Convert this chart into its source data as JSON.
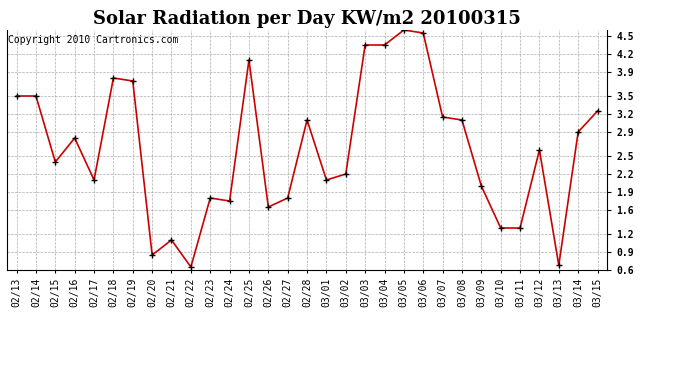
{
  "title": "Solar Radiation per Day KW/m2 20100315",
  "copyright": "Copyright 2010 Cartronics.com",
  "dates": [
    "02/13",
    "02/14",
    "02/15",
    "02/16",
    "02/17",
    "02/18",
    "02/19",
    "02/20",
    "02/21",
    "02/22",
    "02/23",
    "02/24",
    "02/25",
    "02/26",
    "02/27",
    "02/28",
    "03/01",
    "03/02",
    "03/03",
    "03/04",
    "03/05",
    "03/06",
    "03/07",
    "03/08",
    "03/09",
    "03/10",
    "03/11",
    "03/12",
    "03/13",
    "03/14",
    "03/15"
  ],
  "values": [
    3.5,
    3.5,
    2.4,
    2.8,
    2.1,
    3.8,
    3.75,
    0.85,
    1.1,
    0.65,
    1.8,
    1.75,
    4.1,
    1.65,
    1.8,
    3.1,
    2.1,
    2.2,
    4.35,
    4.35,
    4.6,
    4.55,
    3.15,
    3.1,
    2.0,
    1.3,
    1.3,
    2.6,
    0.68,
    2.9,
    3.25
  ],
  "line_color": "#cc0000",
  "marker_color": "#000000",
  "bg_color": "#ffffff",
  "grid_color": "#999999",
  "ylim": [
    0.6,
    4.6
  ],
  "yticks": [
    0.6,
    0.9,
    1.2,
    1.6,
    1.9,
    2.2,
    2.5,
    2.9,
    3.2,
    3.5,
    3.9,
    4.2,
    4.5
  ],
  "title_fontsize": 13,
  "tick_fontsize": 7,
  "copyright_fontsize": 7
}
